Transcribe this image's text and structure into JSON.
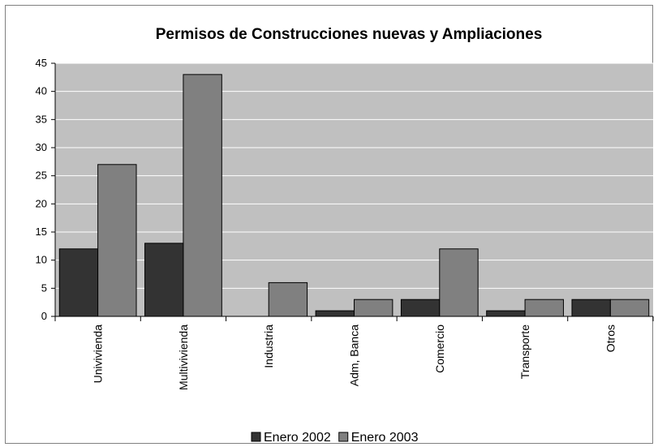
{
  "chart_data": {
    "type": "bar",
    "title": "Permisos de Construcciones nuevas y Ampliaciones",
    "categories": [
      "Univivienda",
      "Multivivienda",
      "Industria",
      "Adm, Banca",
      "Comercio",
      "Transporte",
      "Otros"
    ],
    "series": [
      {
        "name": "Enero 2002",
        "color": "#333333",
        "values": [
          12,
          13,
          0,
          1,
          3,
          1,
          3
        ]
      },
      {
        "name": "Enero 2003",
        "color": "#808080",
        "values": [
          27,
          43,
          6,
          3,
          12,
          3,
          3
        ]
      }
    ],
    "ylim": [
      0,
      45
    ],
    "yticks": [
      0,
      5,
      10,
      15,
      20,
      25,
      30,
      35,
      40,
      45
    ],
    "grid": true,
    "plot_background": "#c0c0c0",
    "legend": "bottom"
  }
}
